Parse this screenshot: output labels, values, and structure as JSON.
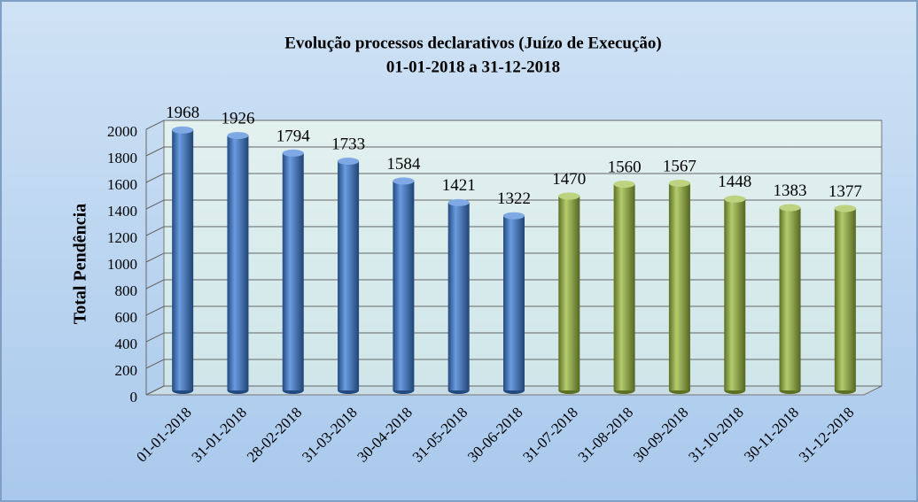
{
  "chart_data": {
    "type": "bar",
    "title": "Evolução processos declarativos (Juízo de Execução)",
    "subtitle": "01-01-2018 a 31-12-2018",
    "y_label": "Total Pendência",
    "categories": [
      "01-01-2018",
      "31-01-2018",
      "28-02-2018",
      "31-03-2018",
      "30-04-2018",
      "31-05-2018",
      "30-06-2018",
      "31-07-2018",
      "31-08-2018",
      "30-09-2018",
      "31-10-2018",
      "30-11-2018",
      "31-12-2018"
    ],
    "values": [
      1968,
      1926,
      1794,
      1733,
      1584,
      1421,
      1322,
      1470,
      1560,
      1567,
      1448,
      1383,
      1377
    ],
    "colors": [
      "#3a7bd5",
      "#3a7bd5",
      "#3a7bd5",
      "#3a7bd5",
      "#3a7bd5",
      "#3a7bd5",
      "#3a7bd5",
      "#9bbb3c",
      "#9bbb3c",
      "#9bbb3c",
      "#9bbb3c",
      "#9bbb3c",
      "#9bbb3c"
    ],
    "ylim": [
      0,
      2000
    ],
    "yticks": [
      0,
      200,
      400,
      600,
      800,
      1000,
      1200,
      1400,
      1600,
      1800,
      2000
    ],
    "grid": true
  }
}
